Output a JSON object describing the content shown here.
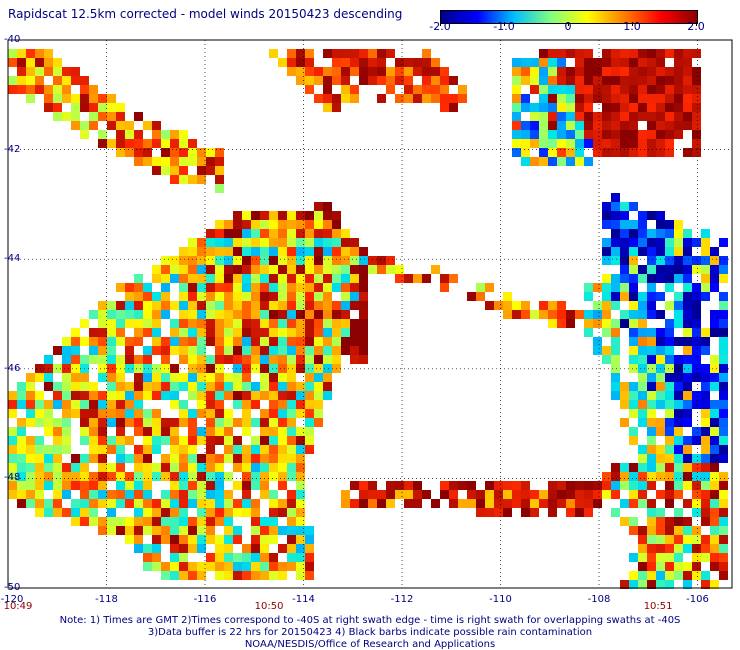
{
  "title": "Rapidscat 12.5km corrected - model winds 20150423 descending",
  "colorbar": {
    "labels": [
      "-2.0",
      "-1.0",
      "0",
      "1.0",
      "2.0"
    ],
    "min": -2.0,
    "max": 2.0,
    "colors": [
      "#00008b",
      "#0000ff",
      "#00bfff",
      "#7fff7f",
      "#ffff00",
      "#ff7f00",
      "#ff0000",
      "#8b0000"
    ]
  },
  "map": {
    "lat_labels": [
      "-40",
      "-42",
      "-44",
      "-46",
      "-48",
      "-50"
    ],
    "lon_labels": [
      "-120",
      "-118",
      "-116",
      "-114",
      "-112",
      "-110",
      "-108",
      "-106"
    ],
    "times": [
      {
        "label": "10:49",
        "lon": -120
      },
      {
        "label": "10:50",
        "lon": -114.7
      },
      {
        "label": "10:51",
        "lon": -106.8
      }
    ]
  },
  "notes": {
    "line1": "Note: 1) Times are GMT 2)Times correspond to -40S at right swath edge - time is right swath for overlapping swaths at -40S",
    "line2": "3)Data buffer is 22 hrs for 20150423 4) Black barbs indicate possible rain contamination",
    "line3": "NOAA/NESDIS/Office of Research and Applications"
  }
}
